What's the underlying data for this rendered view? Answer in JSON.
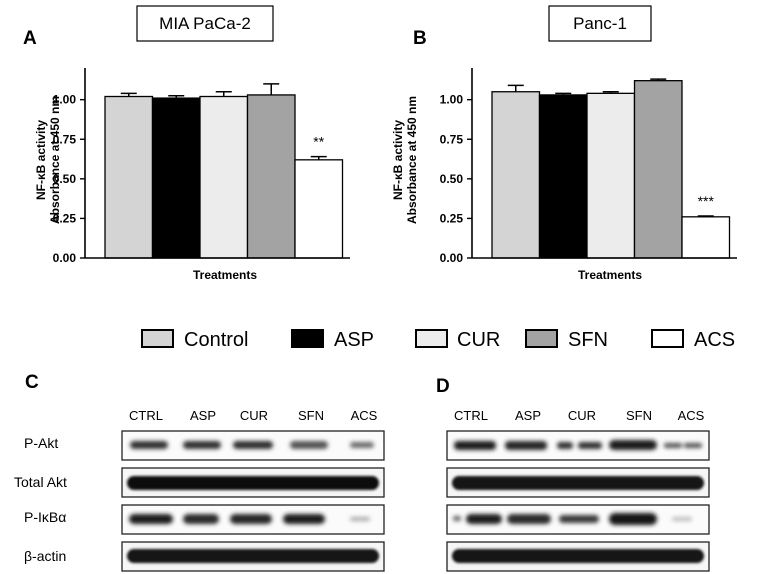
{
  "chart_data": [
    {
      "type": "bar",
      "panel": "A",
      "title": "MIA PaCa-2",
      "ylabel_line1": "NF-κB activity",
      "ylabel_line2": "Absorbance at 450 nm",
      "xlabel": "Treatments",
      "ylim": [
        0,
        1.2
      ],
      "yticks": [
        "0.00",
        "0.25",
        "0.50",
        "0.75",
        "1.00"
      ],
      "categories": [
        "Control",
        "ASP",
        "CUR",
        "SFN",
        "ACS"
      ],
      "values": [
        1.02,
        1.01,
        1.02,
        1.03,
        0.62
      ],
      "errors": [
        0.02,
        0.015,
        0.03,
        0.07,
        0.02
      ],
      "significance": [
        "",
        "",
        "",
        "",
        "**"
      ]
    },
    {
      "type": "bar",
      "panel": "B",
      "title": "Panc-1",
      "ylabel_line1": "NF-κB activity",
      "ylabel_line2": "Absorbance at 450 nm",
      "xlabel": "Treatments",
      "ylim": [
        0,
        1.2
      ],
      "yticks": [
        "0.00",
        "0.25",
        "0.50",
        "0.75",
        "1.00"
      ],
      "categories": [
        "Control",
        "ASP",
        "CUR",
        "SFN",
        "ACS"
      ],
      "values": [
        1.05,
        1.03,
        1.04,
        1.12,
        0.26
      ],
      "errors": [
        0.04,
        0.01,
        0.01,
        0.01,
        0.005
      ],
      "significance": [
        "",
        "",
        "",
        "",
        "***"
      ]
    }
  ],
  "legend": [
    {
      "label": "Control",
      "color": "#d4d4d4"
    },
    {
      "label": "ASP",
      "color": "#000000"
    },
    {
      "label": "CUR",
      "color": "#ececec"
    },
    {
      "label": "SFN",
      "color": "#a3a3a3"
    },
    {
      "label": "ACS",
      "color": "#ffffff"
    }
  ],
  "blots": [
    {
      "panel": "C",
      "lanes": [
        "CTRL",
        "ASP",
        "CUR",
        "SFN",
        "ACS"
      ],
      "rows": [
        "P-Akt",
        "Total Akt",
        "P-IκBα",
        "β-actin"
      ]
    },
    {
      "panel": "D",
      "lanes": [
        "CTRL",
        "ASP",
        "CUR",
        "SFN",
        "ACS"
      ]
    }
  ]
}
